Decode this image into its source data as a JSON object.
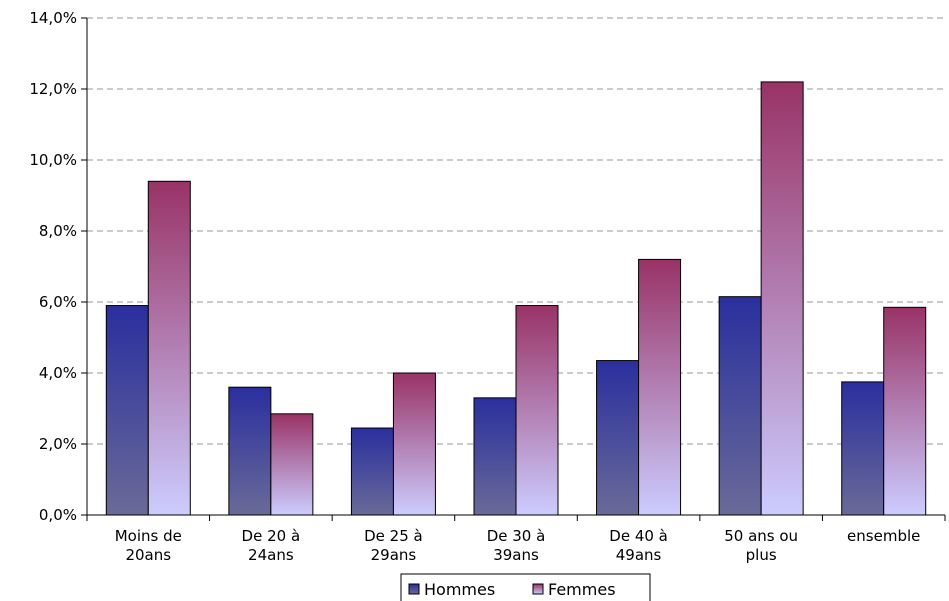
{
  "chart_data": {
    "type": "bar",
    "categories": [
      [
        "Moins de",
        "20ans"
      ],
      [
        "De 20 à",
        "24ans"
      ],
      [
        "De 25 à",
        "29ans"
      ],
      [
        "De 30 à",
        "39ans"
      ],
      [
        "De 40 à",
        "49ans"
      ],
      [
        "50 ans ou",
        "plus"
      ],
      [
        "ensemble"
      ]
    ],
    "series": [
      {
        "name": "Hommes",
        "values": [
          5.9,
          3.6,
          2.45,
          3.3,
          4.35,
          6.15,
          3.75
        ]
      },
      {
        "name": "Femmes",
        "values": [
          9.4,
          2.85,
          4.0,
          5.9,
          7.2,
          12.2,
          5.85
        ]
      }
    ],
    "yticks": [
      "0,0%",
      "2,0%",
      "4,0%",
      "6,0%",
      "8,0%",
      "10,0%",
      "12,0%",
      "14,0%"
    ],
    "ylim": [
      0,
      14
    ],
    "grid": true,
    "legend_position": "bottom"
  }
}
